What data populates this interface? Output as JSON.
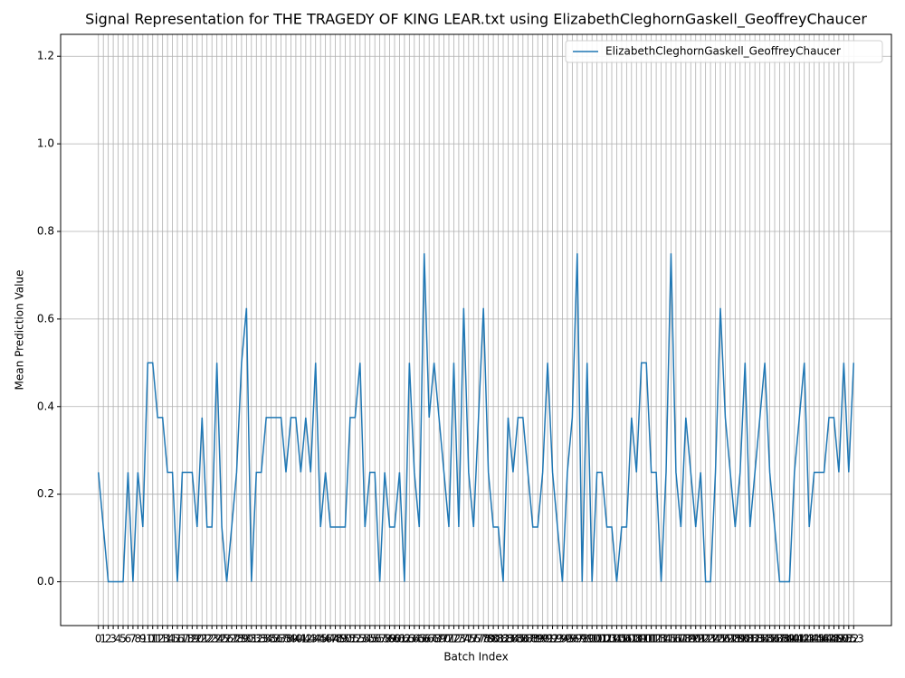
{
  "chart_data": {
    "type": "line",
    "title": "Signal Representation for THE TRAGEDY OF KING LEAR.txt using ElizabethCleghornGaskell_GeoffreyChaucer",
    "x_label": "Batch Index",
    "y_label": "Mean Prediction Value",
    "x": [
      0,
      1,
      2,
      3,
      4,
      5,
      6,
      7,
      8,
      9,
      10,
      11,
      12,
      13,
      14,
      15,
      16,
      17,
      18,
      19,
      20,
      21,
      22,
      23,
      24,
      25,
      26,
      27,
      28,
      29,
      30,
      31,
      32,
      33,
      34,
      35,
      36,
      37,
      38,
      39,
      40,
      41,
      42,
      43,
      44,
      45,
      46,
      47,
      48,
      49,
      50,
      51,
      52,
      53,
      54,
      55,
      56,
      57,
      58,
      59,
      60,
      61,
      62,
      63,
      64,
      65,
      66,
      67,
      68,
      69,
      70,
      71,
      72,
      73,
      74,
      75,
      76,
      77,
      78,
      79,
      80,
      81,
      82,
      83,
      84,
      85,
      86,
      87,
      88,
      89,
      90,
      91,
      92,
      93,
      94,
      95,
      96,
      97,
      98,
      99,
      100,
      101,
      102,
      103,
      104,
      105,
      106,
      107,
      108,
      109,
      110,
      111,
      112,
      113,
      114,
      115,
      116,
      117,
      118,
      119,
      120,
      121,
      122,
      123,
      124,
      125,
      126,
      127,
      128,
      129,
      130,
      131,
      132,
      133,
      134,
      135,
      136,
      137,
      138,
      139,
      140,
      141,
      142,
      143,
      144,
      145,
      146,
      147,
      148,
      149,
      150,
      151,
      152,
      153
    ],
    "series": [
      {
        "name": "ElizabethCleghornGaskell_GeoffreyChaucer",
        "color": "#1f77b4",
        "values": [
          0.25,
          0.125,
          0,
          0,
          0,
          0,
          0.25,
          0,
          0.25,
          0.125,
          0.5,
          0.5,
          0.375,
          0.375,
          0.25,
          0.25,
          0,
          0.25,
          0.25,
          0.25,
          0.125,
          0.375,
          0.125,
          0.125,
          0.5,
          0.125,
          0,
          0.125,
          0.25,
          0.5,
          0.625,
          0,
          0.25,
          0.25,
          0.375,
          0.375,
          0.375,
          0.375,
          0.25,
          0.375,
          0.375,
          0.25,
          0.375,
          0.25,
          0.5,
          0.125,
          0.25,
          0.125,
          0.125,
          0.125,
          0.125,
          0.375,
          0.375,
          0.5,
          0.125,
          0.25,
          0.25,
          0,
          0.25,
          0.125,
          0.125,
          0.25,
          0,
          0.5,
          0.25,
          0.125,
          0.75,
          0.375,
          0.5,
          0.375,
          0.25,
          0.125,
          0.5,
          0.125,
          0.625,
          0.25,
          0.125,
          0.375,
          0.625,
          0.25,
          0.125,
          0.125,
          0,
          0.375,
          0.25,
          0.375,
          0.375,
          0.25,
          0.125,
          0.125,
          0.25,
          0.5,
          0.25,
          0.125,
          0,
          0.25,
          0.375,
          0.75,
          0,
          0.5,
          0,
          0.25,
          0.25,
          0.125,
          0.125,
          0,
          0.125,
          0.125,
          0.375,
          0.25,
          0.5,
          0.5,
          0.25,
          0.25,
          0,
          0.25,
          0.75,
          0.25,
          0.125,
          0.375,
          0.25,
          0.125,
          0.25,
          0,
          0,
          0.25,
          0.625,
          0.375,
          0.25,
          0.125,
          0.25,
          0.5,
          0.125,
          0.25,
          0.375,
          0.5,
          0.25,
          0.125,
          0,
          0,
          0,
          0.25,
          0.375,
          0.5,
          0.125,
          0.25,
          0.25,
          0.25,
          0.375,
          0.375,
          0.25,
          0.5,
          0.25,
          0.5
        ]
      }
    ],
    "xlim": [
      -7.65,
      160.65
    ],
    "ylim": [
      -0.1,
      1.25
    ],
    "xticks": [
      0,
      1,
      2,
      3,
      4,
      5,
      6,
      7,
      8,
      9,
      10,
      11,
      12,
      13,
      14,
      15,
      16,
      17,
      18,
      19,
      20,
      21,
      22,
      23,
      24,
      25,
      26,
      27,
      28,
      29,
      30,
      31,
      32,
      33,
      34,
      35,
      36,
      37,
      38,
      39,
      40,
      41,
      42,
      43,
      44,
      45,
      46,
      47,
      48,
      49,
      50,
      51,
      52,
      53,
      54,
      55,
      56,
      57,
      58,
      59,
      60,
      61,
      62,
      63,
      64,
      65,
      66,
      67,
      68,
      69,
      70,
      71,
      72,
      73,
      74,
      75,
      76,
      77,
      78,
      79,
      80,
      81,
      82,
      83,
      84,
      85,
      86,
      87,
      88,
      89,
      90,
      91,
      92,
      93,
      94,
      95,
      96,
      97,
      98,
      99,
      100,
      101,
      102,
      103,
      104,
      105,
      106,
      107,
      108,
      109,
      110,
      111,
      112,
      113,
      114,
      115,
      116,
      117,
      118,
      119,
      120,
      121,
      122,
      123,
      124,
      125,
      126,
      127,
      128,
      129,
      130,
      131,
      132,
      133,
      134,
      135,
      136,
      137,
      138,
      139,
      140,
      141,
      142,
      143,
      144,
      145,
      146,
      147,
      148,
      149,
      150,
      151,
      152,
      153
    ],
    "yticks": [
      {
        "value": 0,
        "label": "0.0"
      },
      {
        "value": 0.2,
        "label": "0.2"
      },
      {
        "value": 0.4,
        "label": "0.4"
      },
      {
        "value": 0.6,
        "label": "0.6"
      },
      {
        "value": 0.8,
        "label": "0.8"
      },
      {
        "value": 1.0,
        "label": "1.0"
      },
      {
        "value": 1.2,
        "label": "1.2"
      }
    ],
    "grid": true,
    "legend": "upper right"
  }
}
